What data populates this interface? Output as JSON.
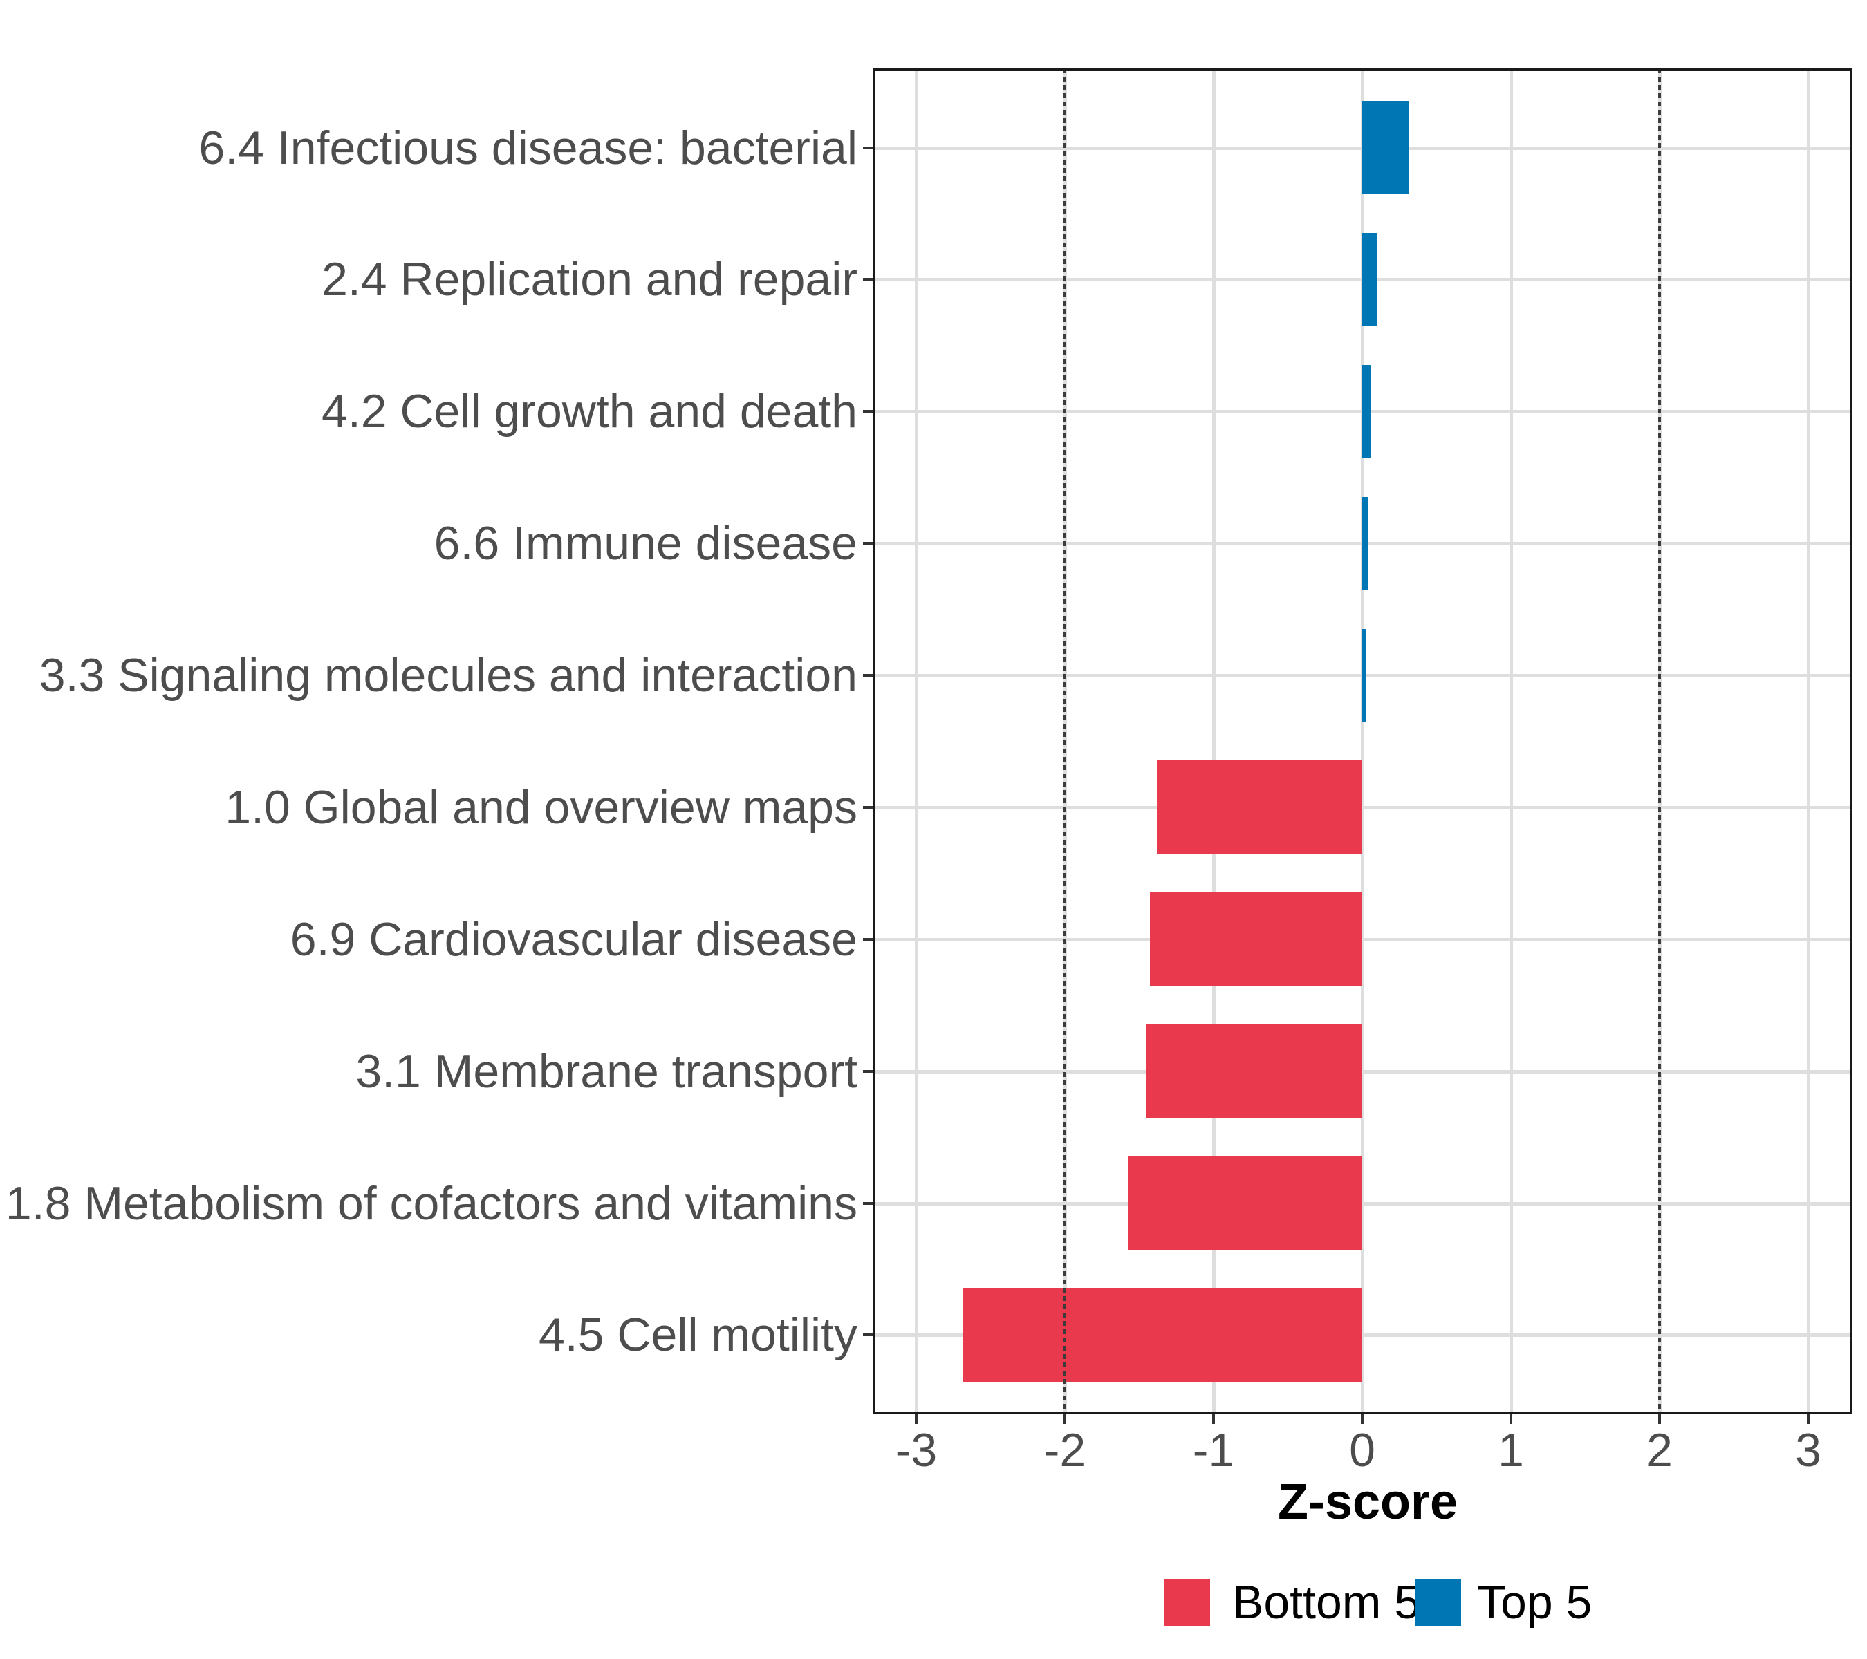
{
  "chart_data": {
    "type": "bar",
    "orientation": "horizontal",
    "title": "",
    "xlabel": "Z-score",
    "xlim": [
      -3.29,
      3.29
    ],
    "grid": "major-only",
    "legend_position": "bottom",
    "x_tick_values": [
      -3,
      -2,
      -1,
      0,
      1,
      2,
      3
    ],
    "x_ticks": [
      "-3",
      "-2",
      "-1",
      "0",
      "1",
      "2",
      "3"
    ],
    "reference_lines": [
      -2,
      2
    ],
    "reference_line_style": "dotted",
    "colors": {
      "top5": "#0076B4",
      "bottom5": "#E8394D",
      "gridline": "#DEDEDE",
      "axis_text": "#4D4D4D",
      "reference_line": "#3C3C3C"
    },
    "legend": [
      {
        "label": "Bottom 5",
        "color": "#E8394D"
      },
      {
        "label": "Top 5",
        "color": "#0076B4"
      }
    ],
    "categories": [
      "6.4 Infectious disease: bacterial",
      "2.4 Replication and repair",
      "4.2 Cell growth and death",
      "6.6 Immune disease",
      "3.3 Signaling molecules and interaction",
      "1.0 Global and overview maps",
      "6.9 Cardiovascular disease",
      "3.1 Membrane transport",
      "1.8 Metabolism of cofactors and vitamins",
      "4.5 Cell motility"
    ],
    "bars": [
      {
        "category": "6.4 Infectious disease: bacterial",
        "value": 0.31,
        "group": "Top 5"
      },
      {
        "category": "2.4 Replication and repair",
        "value": 0.1,
        "group": "Top 5"
      },
      {
        "category": "4.2 Cell growth and death",
        "value": 0.06,
        "group": "Top 5"
      },
      {
        "category": "6.6 Immune disease",
        "value": 0.035,
        "group": "Top 5"
      },
      {
        "category": "3.3 Signaling molecules and interaction",
        "value": 0.025,
        "group": "Top 5"
      },
      {
        "category": "1.0 Global and overview maps",
        "value": -1.38,
        "group": "Bottom 5"
      },
      {
        "category": "6.9 Cardiovascular disease",
        "value": -1.43,
        "group": "Bottom 5"
      },
      {
        "category": "3.1 Membrane transport",
        "value": -1.45,
        "group": "Bottom 5"
      },
      {
        "category": "1.8 Metabolism of cofactors and vitamins",
        "value": -1.57,
        "group": "Bottom 5"
      },
      {
        "category": "4.5 Cell motility",
        "value": -2.69,
        "group": "Bottom 5"
      }
    ]
  }
}
